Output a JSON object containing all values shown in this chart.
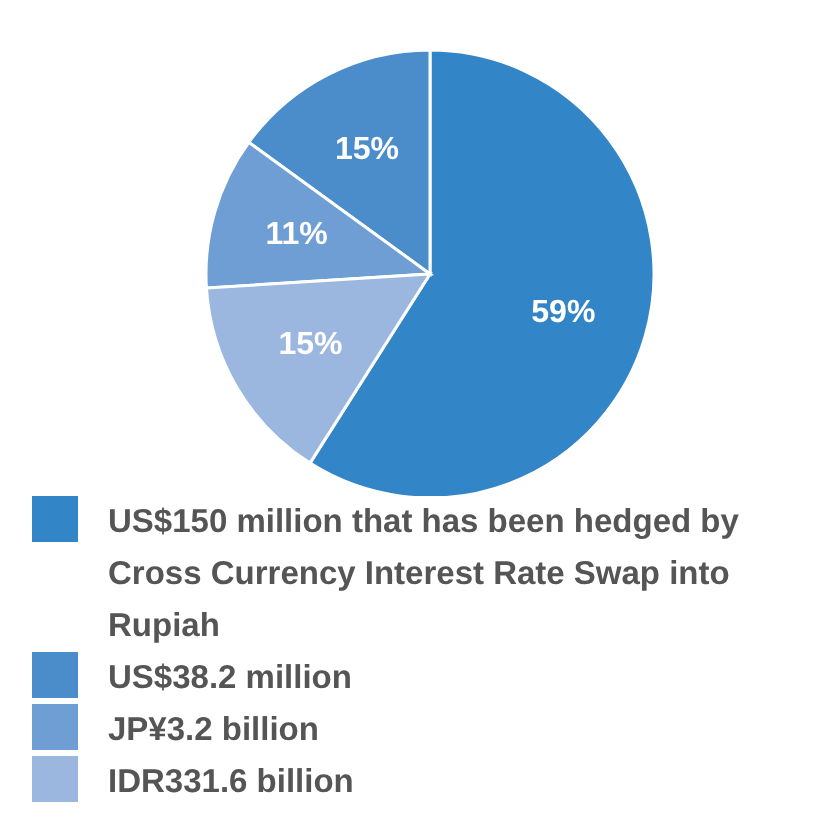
{
  "chart_data": {
    "type": "pie",
    "categories": [
      "US$150 million that has been hedged by Cross Currency Interest Rate Swap into Rupiah",
      "US$38.2 million",
      "JP¥3.2 billion",
      "IDR331.6 billion"
    ],
    "values": [
      59,
      15,
      11,
      15
    ],
    "value_labels": [
      "59%",
      "15%",
      "11%",
      "15%"
    ],
    "colors": [
      "#3285c6",
      "#4b8dcb",
      "#6f9ed5",
      "#9bb7e0"
    ],
    "legend": "bottom"
  }
}
